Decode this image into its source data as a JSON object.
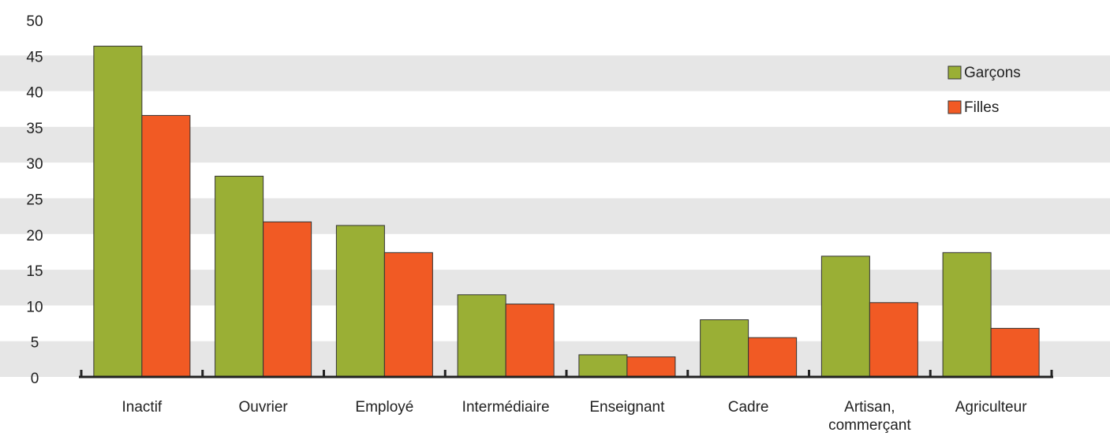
{
  "chart_data": {
    "type": "bar",
    "categories": [
      "Inactif",
      "Ouvrier",
      "Employé",
      "Intermédiaire",
      "Enseignant",
      "Cadre",
      "Artisan, commerçant",
      "Agriculteur"
    ],
    "series": [
      {
        "name": "Garçons",
        "color": "#9aaf35",
        "values": [
          46.3,
          28.1,
          21.2,
          11.5,
          3.1,
          8.0,
          16.9,
          17.4
        ]
      },
      {
        "name": "Filles",
        "color": "#f15a24",
        "values": [
          36.6,
          21.7,
          17.4,
          10.2,
          2.8,
          5.5,
          10.4,
          6.8
        ]
      }
    ],
    "ylim": [
      0,
      50
    ],
    "yticks": [
      0,
      5,
      10,
      15,
      20,
      25,
      30,
      35,
      40,
      45,
      50
    ],
    "grid": true,
    "legend": "top-right"
  }
}
